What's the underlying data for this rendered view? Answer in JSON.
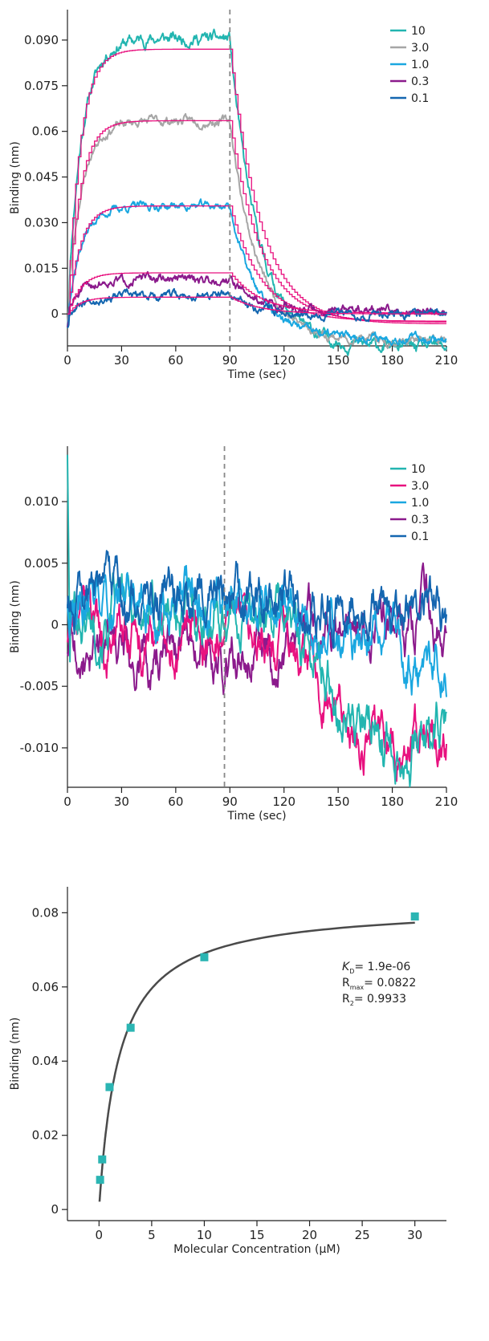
{
  "colors": {
    "c10": "#22b5b0",
    "c3_gray": "#a6a6a6",
    "c3_pink": "#e8117f",
    "c1": "#1aa7e0",
    "c03": "#8b1a8c",
    "c01": "#1466b0",
    "fit": "#e8117f",
    "curve": "#4a4a4a",
    "marker": "#2bb5b3"
  },
  "chart_data": [
    {
      "type": "line",
      "title": "",
      "xlabel": "Time (sec)",
      "ylabel": "Binding (nm)",
      "xlim": [
        0,
        210
      ],
      "ylim": [
        -0.0105,
        0.1
      ],
      "x_ticks": [
        0,
        30,
        60,
        90,
        120,
        150,
        180,
        210
      ],
      "x_tick_labels": [
        "0",
        "30",
        "60",
        "90",
        "120",
        "150",
        "180",
        "210"
      ],
      "y_ticks": [
        0,
        0.015,
        0.03,
        0.045,
        0.06,
        0.075,
        0.09
      ],
      "y_tick_labels": [
        "0",
        "0.015",
        "0.030",
        "0.045",
        "0.06",
        "0.075",
        "0.090"
      ],
      "legend_position": "top-right",
      "dissociation_start": 90,
      "association_end": 90,
      "series": [
        {
          "name": "10",
          "color_key": "c10",
          "plateau": 0.0905,
          "fit_plateau": 0.087,
          "end_value": -0.011,
          "noise": 0.0016
        },
        {
          "name": "3.0",
          "color_key": "c3_gray",
          "plateau": 0.0635,
          "fit_plateau": 0.0635,
          "end_value": -0.009,
          "noise": 0.0012
        },
        {
          "name": "1.0",
          "color_key": "c1",
          "plateau": 0.0355,
          "fit_plateau": 0.0355,
          "end_value": -0.008,
          "noise": 0.0011
        },
        {
          "name": "0.3",
          "color_key": "c03",
          "plateau": 0.0115,
          "fit_plateau": 0.0135,
          "end_value": 0.001,
          "noise": 0.0012
        },
        {
          "name": "0.1",
          "color_key": "c01",
          "plateau": 0.006,
          "fit_plateau": 0.0055,
          "end_value": 0.0,
          "noise": 0.0011
        }
      ]
    },
    {
      "type": "line",
      "title": "",
      "xlabel": "Time (sec)",
      "ylabel": "Binding (nm)",
      "xlim": [
        0,
        210
      ],
      "ylim": [
        -0.0132,
        0.0145
      ],
      "x_ticks": [
        0,
        30,
        60,
        90,
        120,
        150,
        180,
        210
      ],
      "x_tick_labels": [
        "0",
        "30",
        "60",
        "90",
        "120",
        "150",
        "180",
        "210"
      ],
      "y_ticks": [
        -0.01,
        -0.005,
        0,
        0.005,
        0.01
      ],
      "y_tick_labels": [
        "-0.010",
        "-0.005",
        "0",
        "0.005",
        "0.010"
      ],
      "legend_position": "top-right",
      "dissociation_start": 87,
      "series": [
        {
          "name": "10",
          "color_key": "c10",
          "start_mean": 0.001,
          "end_mean": -0.009,
          "noise": 0.0028
        },
        {
          "name": "3.0",
          "color_key": "c3_pink",
          "start_mean": -0.001,
          "end_mean": -0.009,
          "noise": 0.0026
        },
        {
          "name": "1.0",
          "color_key": "c1",
          "start_mean": 0.002,
          "end_mean": -0.002,
          "noise": 0.0026
        },
        {
          "name": "0.3",
          "color_key": "c03",
          "start_mean": -0.002,
          "end_mean": 0.0,
          "noise": 0.0026
        },
        {
          "name": "0.1",
          "color_key": "c01",
          "start_mean": 0.0015,
          "end_mean": 0.0015,
          "noise": 0.0026
        }
      ]
    },
    {
      "type": "scatter",
      "title": "",
      "xlabel": "Molecular Concentration (µM)",
      "ylabel": "Binding (nm)",
      "xlim": [
        -3,
        33
      ],
      "ylim": [
        -0.003,
        0.087
      ],
      "x_ticks": [
        0,
        5,
        10,
        15,
        20,
        25,
        30
      ],
      "x_tick_labels": [
        "0",
        "5",
        "10",
        "15",
        "20",
        "25",
        "30"
      ],
      "y_ticks": [
        0,
        0.02,
        0.04,
        0.06,
        0.08
      ],
      "y_tick_labels": [
        "0",
        "0.02",
        "0.04",
        "0.06",
        "0.08"
      ],
      "points": [
        {
          "x": 0.1,
          "y": 0.008
        },
        {
          "x": 0.3,
          "y": 0.0135
        },
        {
          "x": 1.0,
          "y": 0.033
        },
        {
          "x": 3.0,
          "y": 0.049
        },
        {
          "x": 10,
          "y": 0.068
        },
        {
          "x": 30,
          "y": 0.079
        }
      ],
      "fit": {
        "model": "one-site",
        "kd": 1.9,
        "rmax": 0.0822,
        "x_start": 0.05,
        "x_end": 30
      },
      "annotation": {
        "kd_symbol": "K",
        "kd_sub": "D",
        "kd_value": "= 1.9e-06",
        "rmax_symbol": "R",
        "rmax_sub": "max",
        "rmax_value": "= 0.0822",
        "r2_symbol": "R",
        "r2_sub": "2",
        "r2_value": "= 0.9933"
      }
    }
  ]
}
